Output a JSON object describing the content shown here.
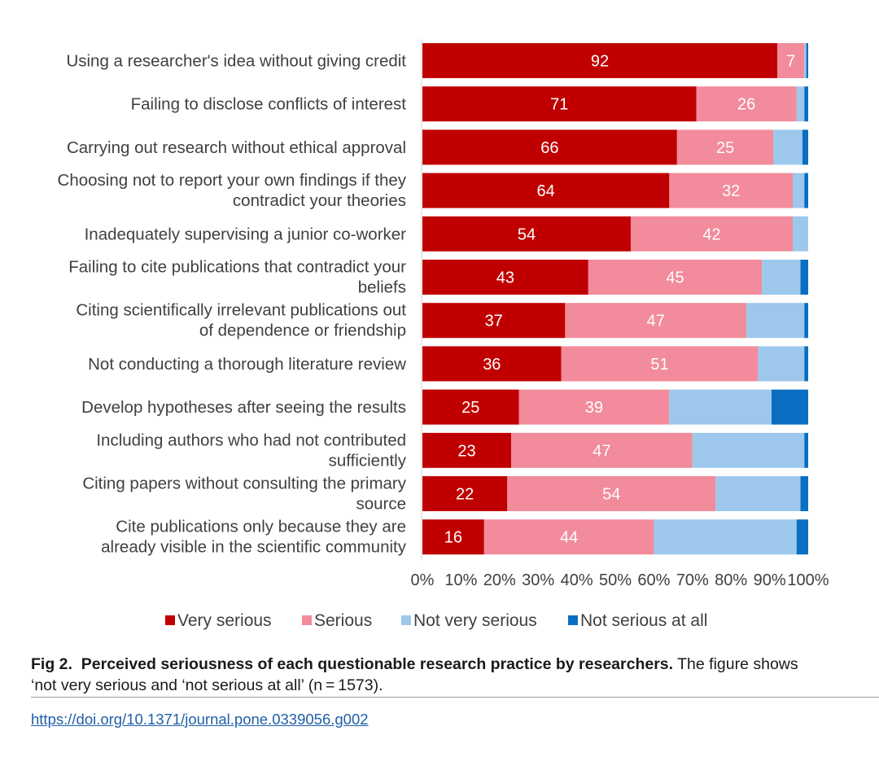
{
  "chart_data": {
    "type": "bar",
    "orientation": "horizontal",
    "stacked": "100%",
    "categories": [
      "Using a researcher's idea without giving credit",
      "Failing to disclose conflicts of interest",
      "Carrying out research without ethical approval",
      "Choosing not to report your own findings if they contradict your theories",
      "Inadequately supervising a junior co-worker",
      "Failing to cite publications that contradict your beliefs",
      "Citing scientifically irrelevant publications out of dependence or friendship",
      "Not conducting a thorough literature review",
      "Develop hypotheses after seeing the results",
      "Including authors who had not contributed sufficiently",
      "Citing papers without consulting the primary source",
      "Cite publications only because they are already visible in the scientific community"
    ],
    "category_lines": [
      [
        "Using a researcher's idea without giving credit"
      ],
      [
        "Failing to disclose conflicts of interest"
      ],
      [
        "Carrying out research without ethical approval"
      ],
      [
        "Choosing not to report your own findings if they",
        "contradict your theories"
      ],
      [
        "Inadequately supervising a junior co-worker"
      ],
      [
        "Failing to cite publications that contradict your",
        "beliefs"
      ],
      [
        "Citing scientifically irrelevant publications out",
        "of dependence or friendship"
      ],
      [
        "Not conducting a thorough literature review"
      ],
      [
        "Develop hypotheses after seeing the results"
      ],
      [
        "Including authors who had not contributed",
        "sufficiently"
      ],
      [
        "Citing papers without consulting the primary",
        "source"
      ],
      [
        "Cite publications only because they are",
        "already visible in the scientific community"
      ]
    ],
    "series": [
      {
        "name": "Very serious",
        "color": "#c00000",
        "values": [
          92,
          71,
          66,
          64,
          54,
          43,
          37,
          36,
          25,
          23,
          22,
          16
        ],
        "labeled": true
      },
      {
        "name": "Serious",
        "color": "#f28b9b",
        "values": [
          7,
          26,
          25,
          32,
          42,
          45,
          47,
          51,
          39,
          47,
          54,
          44
        ],
        "labeled": true
      },
      {
        "name": "Not very serious",
        "color": "#9dc8ec",
        "values": [
          0.5,
          2,
          7.5,
          3,
          4.5,
          10,
          15,
          12,
          26.5,
          29,
          22,
          37
        ],
        "labeled": false
      },
      {
        "name": "Not serious at all",
        "color": "#0a6fc2",
        "values": [
          0.5,
          1,
          1.5,
          1,
          0.5,
          2,
          1,
          1,
          9.5,
          1,
          2,
          3
        ],
        "labeled": false
      }
    ],
    "x_ticks": [
      "0%",
      "10%",
      "20%",
      "30%",
      "40%",
      "50%",
      "60%",
      "70%",
      "80%",
      "90%",
      "100%"
    ],
    "xlim": [
      0,
      100
    ],
    "grid": false,
    "legend_position": "bottom"
  },
  "caption": {
    "label": "Fig 2.",
    "title": "Perceived seriousness of each questionable research practice by researchers.",
    "text_line1": "The figure shows",
    "text_line2": "‘not very serious and ‘not serious at all’ (n = 1573)."
  },
  "doi": "https://doi.org/10.1371/journal.pone.0339056.g002"
}
